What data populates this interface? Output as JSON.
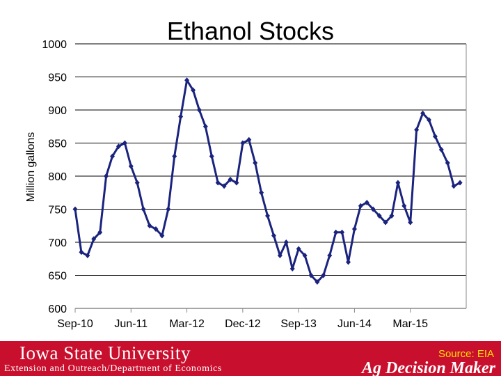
{
  "chart_data": {
    "type": "line",
    "title": "Ethanol Stocks",
    "ylabel": "Million gallons",
    "xlabel": "",
    "ylim": [
      600,
      1000
    ],
    "yticks": [
      600,
      650,
      700,
      750,
      800,
      850,
      900,
      950,
      1000
    ],
    "xticks": [
      {
        "label": "Sep-10",
        "x": "2010-09"
      },
      {
        "label": "Jun-11",
        "x": "2011-06"
      },
      {
        "label": "Mar-12",
        "x": "2012-03"
      },
      {
        "label": "Dec-12",
        "x": "2012-12"
      },
      {
        "label": "Sep-13",
        "x": "2013-09"
      },
      {
        "label": "Jun-14",
        "x": "2014-06"
      },
      {
        "label": "Mar-15",
        "x": "2015-03"
      }
    ],
    "grid": true,
    "legend": "none",
    "line_color": "#1a237e",
    "series": [
      {
        "x": [
          "2010-09",
          "2010-10",
          "2010-11",
          "2010-12",
          "2011-01",
          "2011-02",
          "2011-03",
          "2011-04",
          "2011-05",
          "2011-06",
          "2011-07",
          "2011-08",
          "2011-09",
          "2011-10",
          "2011-11",
          "2011-12",
          "2012-01",
          "2012-02",
          "2012-03",
          "2012-04",
          "2012-05",
          "2012-06",
          "2012-07",
          "2012-08",
          "2012-09",
          "2012-10",
          "2012-11",
          "2012-12",
          "2013-01",
          "2013-02",
          "2013-03",
          "2013-04",
          "2013-05",
          "2013-06",
          "2013-07",
          "2013-08",
          "2013-09",
          "2013-10",
          "2013-11",
          "2013-12",
          "2014-01",
          "2014-02",
          "2014-03",
          "2014-04",
          "2014-05",
          "2014-06",
          "2014-07",
          "2014-08",
          "2014-09",
          "2014-10",
          "2014-11",
          "2014-12",
          "2015-01",
          "2015-02",
          "2015-03",
          "2015-04",
          "2015-05",
          "2015-06",
          "2015-07",
          "2015-08",
          "2015-09",
          "2015-10",
          "2015-11"
        ],
        "values": [
          750,
          685,
          680,
          705,
          715,
          800,
          830,
          845,
          850,
          815,
          790,
          750,
          725,
          720,
          710,
          750,
          830,
          890,
          945,
          930,
          900,
          875,
          830,
          790,
          785,
          795,
          790,
          850,
          855,
          820,
          775,
          740,
          710,
          680,
          700,
          660,
          690,
          680,
          650,
          640,
          650,
          680,
          715,
          715,
          670,
          720,
          755,
          760,
          750,
          740,
          730,
          740,
          790,
          755,
          730,
          870,
          895,
          885,
          860,
          840,
          820,
          785,
          790
        ]
      }
    ]
  },
  "footer": {
    "university": "Iowa State University",
    "department": "Extension and Outreach/Department of Economics",
    "source": "Source: EIA",
    "brand": "Ag Decision Maker"
  }
}
